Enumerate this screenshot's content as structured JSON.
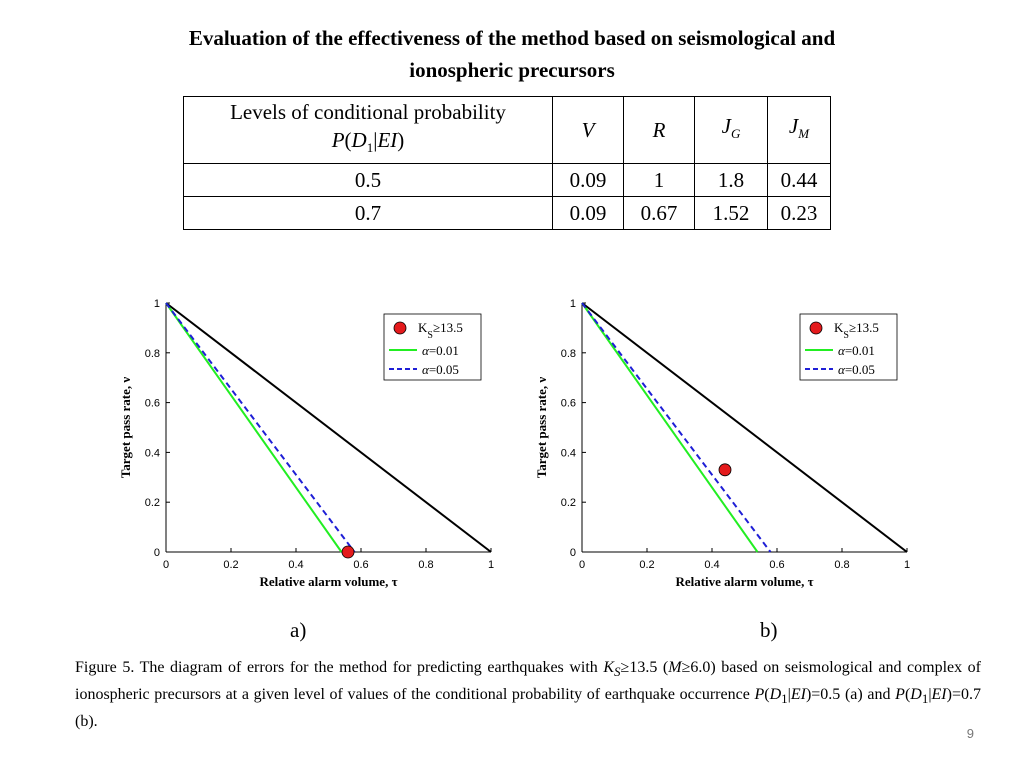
{
  "title_line1": "Evaluation of the effectiveness of the method based on seismological and",
  "title_line2": "ionospheric precursors",
  "table": {
    "header_levels_line1": "Levels of conditional probability",
    "header_levels_p": "P",
    "header_levels_d": "D",
    "header_levels_sub": "1",
    "header_levels_ei": "EI",
    "header_v": "V",
    "header_r": "R",
    "header_jg": "J",
    "header_jg_sub": "G",
    "header_jm": "J",
    "header_jm_sub": "M",
    "rows": [
      {
        "level": "0.5",
        "v": "0.09",
        "r": "1",
        "jg": "1.8",
        "jm": "0.44"
      },
      {
        "level": "0.7",
        "v": "0.09",
        "r": "0.67",
        "jg": "1.52",
        "jm": "0.23"
      }
    ]
  },
  "chart_data": [
    {
      "type": "line",
      "panel_label": "a)",
      "xlabel": "Relative alarm volume, τ",
      "ylabel": "Target pass rate, ν",
      "xlim": [
        0,
        1
      ],
      "ylim": [
        0,
        1
      ],
      "xticks": [
        "0",
        "0.2",
        "0.4",
        "0.6",
        "0.8",
        "1"
      ],
      "yticks": [
        "0",
        "0.2",
        "0.4",
        "0.6",
        "0.8",
        "1"
      ],
      "grid": false,
      "legend_position": "top-right",
      "diagonal": {
        "x": [
          0,
          1
        ],
        "y": [
          1,
          0
        ],
        "color": "#000000"
      },
      "series": [
        {
          "name": "=0.01",
          "greek": "α",
          "style": "solid",
          "color": "#22ee22",
          "x": [
            0,
            0.54
          ],
          "y": [
            1,
            0
          ]
        },
        {
          "name": "=0.05",
          "greek": "α",
          "style": "dashed",
          "color": "#1f1fd6",
          "x": [
            0,
            0.58
          ],
          "y": [
            1,
            0
          ]
        }
      ],
      "points": {
        "legend_main": "K",
        "legend_sub": "S",
        "legend_rest": "≥13.5",
        "color": "#e41a1c",
        "x": [
          0.56
        ],
        "y": [
          0
        ]
      }
    },
    {
      "type": "line",
      "panel_label": "b)",
      "xlabel": "Relative alarm volume, τ",
      "ylabel": "Target pass rate, ν",
      "xlim": [
        0,
        1
      ],
      "ylim": [
        0,
        1
      ],
      "xticks": [
        "0",
        "0.2",
        "0.4",
        "0.6",
        "0.8",
        "1"
      ],
      "yticks": [
        "0",
        "0.2",
        "0.4",
        "0.6",
        "0.8",
        "1"
      ],
      "grid": false,
      "legend_position": "top-right",
      "diagonal": {
        "x": [
          0,
          1
        ],
        "y": [
          1,
          0
        ],
        "color": "#000000"
      },
      "series": [
        {
          "name": "=0.01",
          "greek": "α",
          "style": "solid",
          "color": "#22ee22",
          "x": [
            0,
            0.54
          ],
          "y": [
            1,
            0
          ]
        },
        {
          "name": "=0.05",
          "greek": "α",
          "style": "dashed",
          "color": "#1f1fd6",
          "x": [
            0,
            0.58
          ],
          "y": [
            1,
            0
          ]
        }
      ],
      "points": {
        "legend_main": "K",
        "legend_sub": "S",
        "legend_rest": "≥13.5",
        "color": "#e41a1c",
        "x": [
          0.44
        ],
        "y": [
          0.33
        ]
      }
    }
  ],
  "caption": {
    "part1": "Figure 5. The diagram of  errors for the method for predicting earthquakes with ",
    "k": "K",
    "k_sub": "S",
    "part2": "≥13.5 (",
    "m": "M",
    "part3": "≥6.0) based on seismological and complex of ionospheric precursors at a given level of values of the conditional probability of earthquake occurrence ",
    "p1": "P",
    "paren_open1": "(",
    "d1": "D",
    "d1_sub": "1",
    "bar1": "|",
    "ei1": "EI",
    "part4": ")=0.5 (a) and ",
    "p2": "P",
    "paren_open2": "(",
    "d2": "D",
    "d2_sub": "1",
    "bar2": "|",
    "ei2": "EI",
    "part5": ")=0.7 (b)."
  },
  "page_number": "9"
}
